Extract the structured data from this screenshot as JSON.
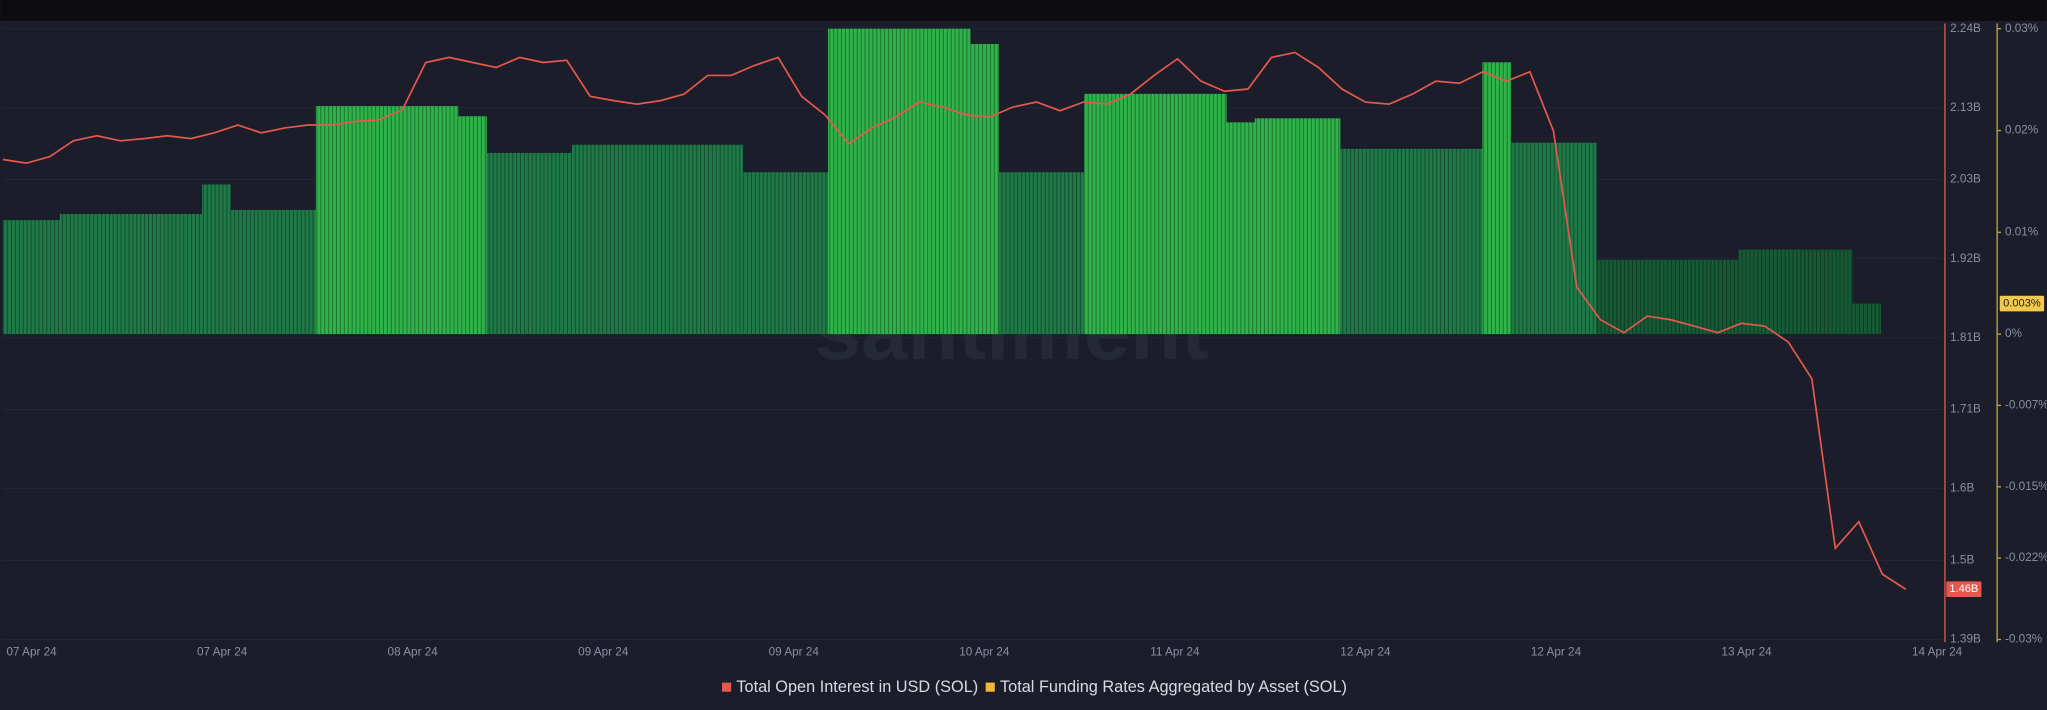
{
  "chart_data": {
    "type": "bar-line",
    "watermark": "santiment",
    "x_labels": [
      "07 Apr 24",
      "07 Apr 24",
      "08 Apr 24",
      "09 Apr 24",
      "09 Apr 24",
      "10 Apr 24",
      "11 Apr 24",
      "12 Apr 24",
      "12 Apr 24",
      "13 Apr 24",
      "14 Apr 24"
    ],
    "ylim": [
      1.39,
      2.24
    ],
    "yticks": [
      {
        "value": 2.24,
        "label": "2.24B"
      },
      {
        "value": 2.13,
        "label": "2.13B"
      },
      {
        "value": 2.03,
        "label": "2.03B"
      },
      {
        "value": 1.92,
        "label": "1.92B"
      },
      {
        "value": 1.81,
        "label": "1.81B"
      },
      {
        "value": 1.71,
        "label": "1.71B"
      },
      {
        "value": 1.6,
        "label": "1.6B"
      },
      {
        "value": 1.5,
        "label": "1.5B"
      },
      {
        "value": 1.39,
        "label": "1.39B"
      }
    ],
    "y2lim": [
      -0.03,
      0.03
    ],
    "y2ticks": [
      {
        "value": 0.03,
        "label": "0.03%"
      },
      {
        "value": 0.02,
        "label": "0.02%"
      },
      {
        "value": 0.01,
        "label": "0.01%"
      },
      {
        "value": 0,
        "label": "0%"
      },
      {
        "value": -0.007,
        "label": "-0.007%"
      },
      {
        "value": -0.015,
        "label": "-0.015%"
      },
      {
        "value": -0.022,
        "label": "-0.022%"
      },
      {
        "value": -0.03,
        "label": "-0.03%"
      }
    ],
    "grid": true,
    "series": [
      {
        "name": "Total Open Interest in USD (SOL)",
        "type": "line",
        "color": "#e5584d",
        "last_label": "1.46B",
        "values": [
          2.058,
          2.053,
          2.062,
          2.084,
          2.091,
          2.084,
          2.087,
          2.091,
          2.087,
          2.095,
          2.106,
          2.095,
          2.102,
          2.106,
          2.106,
          2.111,
          2.113,
          2.127,
          2.193,
          2.2,
          2.193,
          2.186,
          2.2,
          2.193,
          2.196,
          2.146,
          2.14,
          2.135,
          2.14,
          2.149,
          2.175,
          2.175,
          2.189,
          2.2,
          2.146,
          2.12,
          2.08,
          2.102,
          2.117,
          2.138,
          2.131,
          2.12,
          2.117,
          2.131,
          2.138,
          2.126,
          2.138,
          2.135,
          2.149,
          2.175,
          2.198,
          2.167,
          2.153,
          2.156,
          2.2,
          2.207,
          2.186,
          2.156,
          2.138,
          2.135,
          2.149,
          2.167,
          2.164,
          2.18,
          2.167,
          2.18,
          2.098,
          1.88,
          1.835,
          1.817,
          1.84,
          1.835,
          1.826,
          1.817,
          1.83,
          1.826,
          1.804,
          1.753,
          1.517,
          1.554,
          1.481,
          1.46
        ]
      },
      {
        "name": "Total Funding Rates Aggregated by Asset (SOL)",
        "type": "bar",
        "axis": "y2",
        "color": "#f2b83c",
        "last_label": "0.003%",
        "bar_colors": [
          {
            "min": 0.02,
            "color": "#2fb34a"
          },
          {
            "min": 0.01,
            "color": "#1f7a48"
          },
          {
            "min": -1,
            "color": "#175a36"
          }
        ],
        "values": [
          0.0112,
          0.0112,
          0.0118,
          0.0118,
          0.0118,
          0.0118,
          0.0118,
          0.0147,
          0.0122,
          0.0122,
          0.0122,
          0.0224,
          0.0224,
          0.0224,
          0.0224,
          0.0224,
          0.0214,
          0.0178,
          0.0178,
          0.0178,
          0.0186,
          0.0186,
          0.0186,
          0.0186,
          0.0186,
          0.0186,
          0.0159,
          0.0159,
          0.0159,
          0.03,
          0.03,
          0.03,
          0.03,
          0.03,
          0.0285,
          0.0159,
          0.0159,
          0.0159,
          0.0236,
          0.0236,
          0.0236,
          0.0236,
          0.0236,
          0.0208,
          0.0212,
          0.0212,
          0.0212,
          0.0182,
          0.0182,
          0.0182,
          0.0182,
          0.0182,
          0.0267,
          0.0188,
          0.0188,
          0.0188,
          0.0073,
          0.0073,
          0.0073,
          0.0073,
          0.0073,
          0.0083,
          0.0083,
          0.0083,
          0.0083,
          0.003
        ]
      }
    ]
  }
}
